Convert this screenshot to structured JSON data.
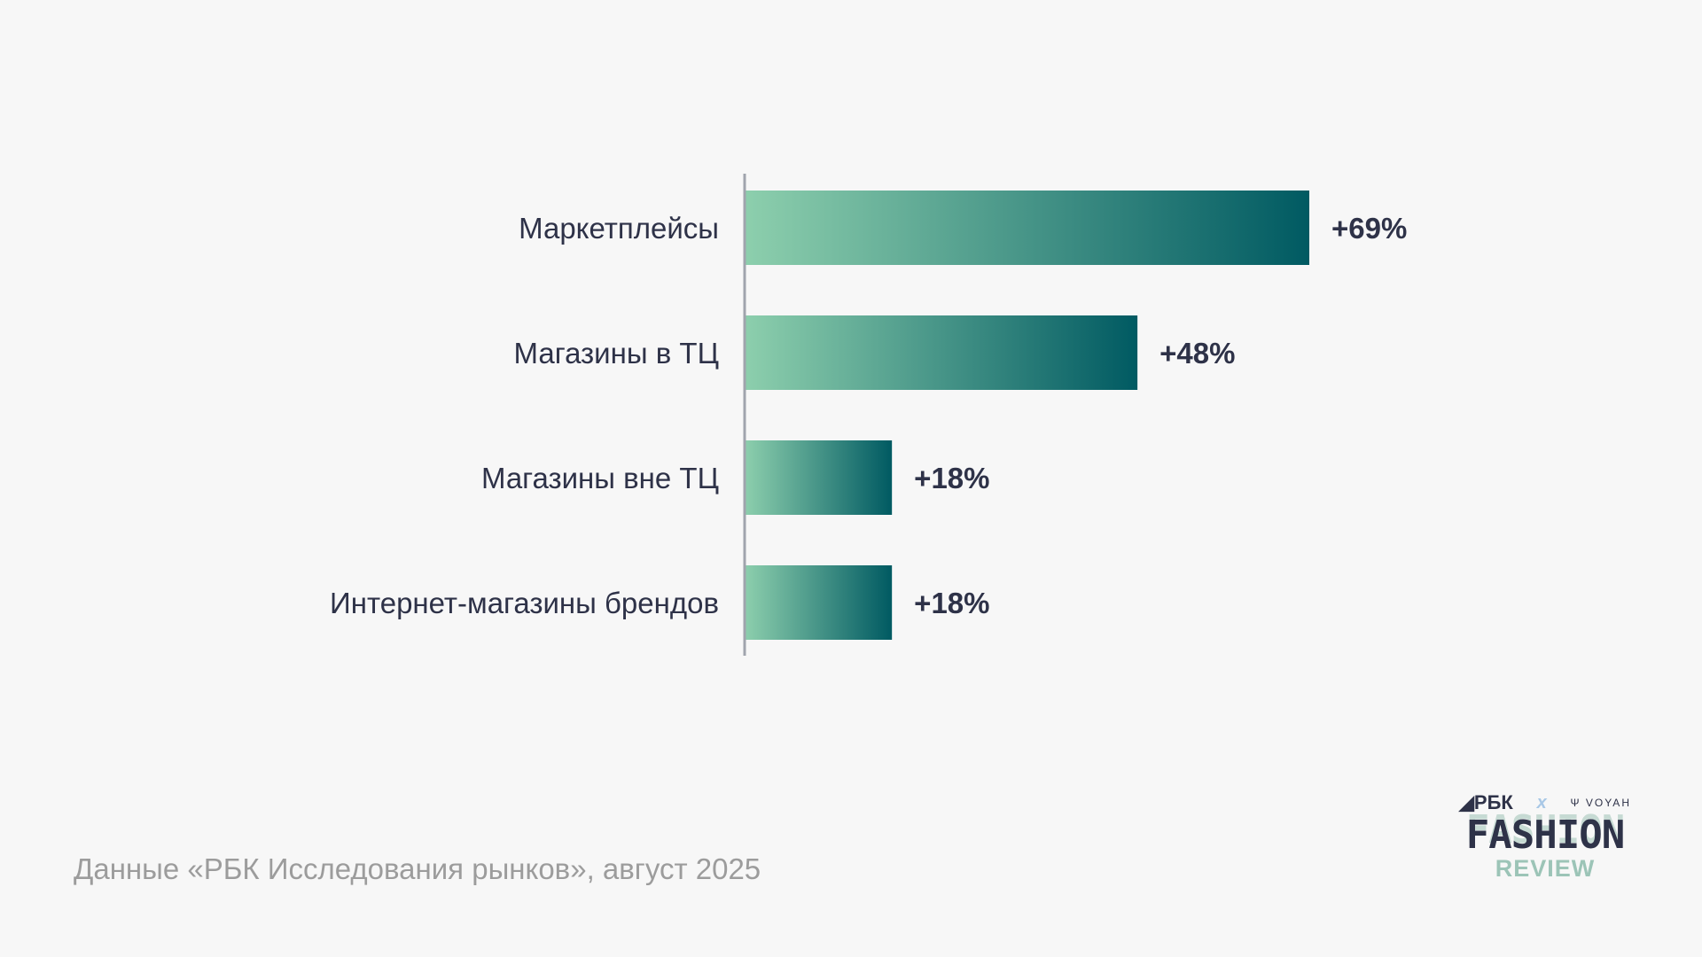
{
  "chart_data": {
    "type": "bar",
    "orientation": "horizontal",
    "categories": [
      "Маркетплейсы",
      "Магазины в ТЦ",
      "Магазины вне ТЦ",
      "Интернет-магазины брендов"
    ],
    "values": [
      69,
      48,
      18,
      18
    ],
    "value_labels": [
      "+69%",
      "+48%",
      "+18%",
      "+18%"
    ],
    "unit": "%",
    "xlim": [
      0,
      69
    ],
    "grid": false,
    "colors": {
      "bar_start": "#8dcfad",
      "bar_end": "#005a62",
      "text": "#2e3248",
      "axis": "#a0a4ad"
    }
  },
  "footnote": "Данные «РБК Исследования рынков», август 2025",
  "logo": {
    "brand1": "РБК",
    "x": "x",
    "brand2": "VOYAH",
    "line1": "FASHION",
    "line2": "REVIEW"
  }
}
